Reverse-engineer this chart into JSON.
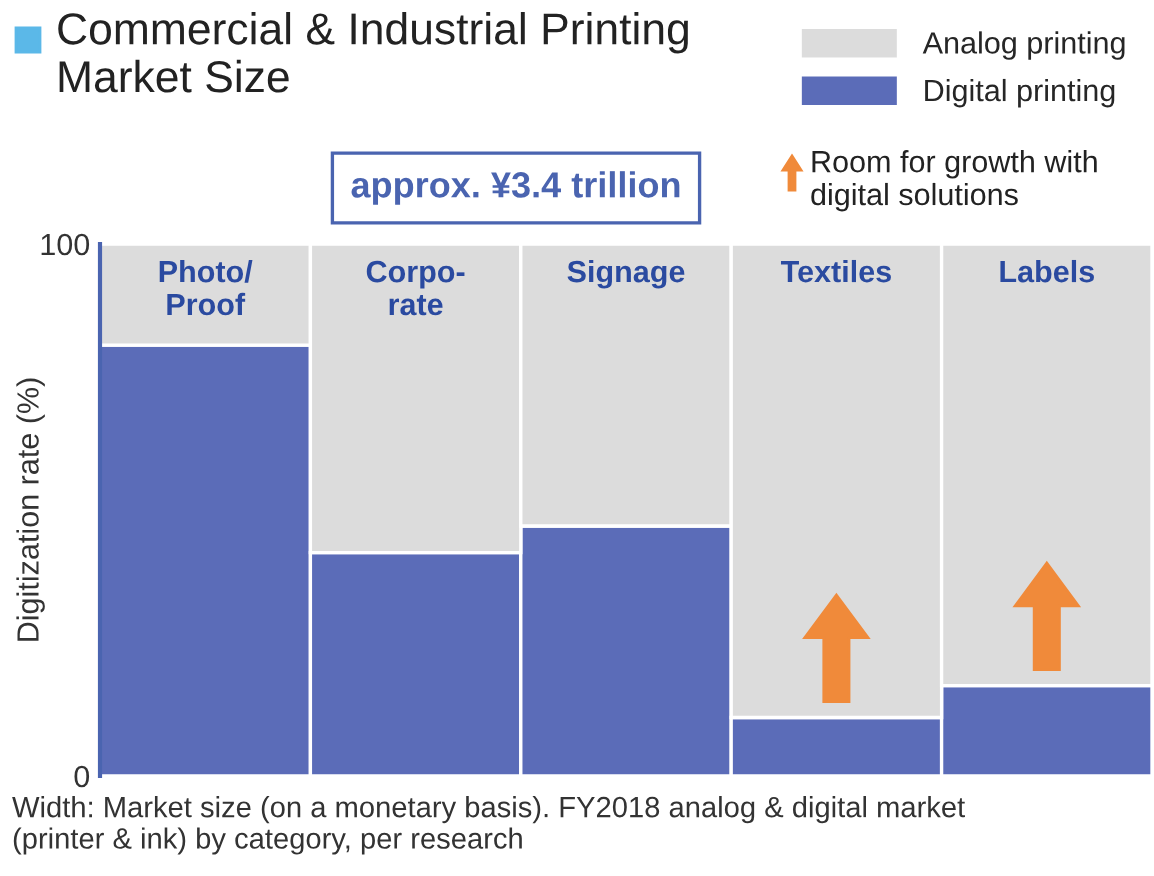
{
  "chart_data": {
    "type": "bar",
    "stacked": true,
    "title": "Commercial & Industrial Printing\nMarket Size",
    "categories": [
      "Photo/\nProof",
      "Corpo-\nrate",
      "Signage",
      "Textiles",
      "Labels"
    ],
    "series": [
      {
        "name": "Digital printing",
        "color": "#5b6cb8",
        "values": [
          81,
          42,
          47,
          11,
          17
        ]
      },
      {
        "name": "Analog printing",
        "color": "#dcdcdc",
        "values": [
          19,
          58,
          53,
          89,
          83
        ]
      }
    ],
    "ylim": [
      0,
      100
    ],
    "yticks": [
      0,
      100
    ],
    "ylabel": "Digitization rate (%)",
    "tick_labels": "y",
    "legend": "top right",
    "annotations": [
      "approx. ¥3.4 trillion",
      "Room for growth with\ndigital solutions",
      "Width: Market size (on a monetary basis). FY2018 analog & digital market\n(printer & ink) by category, per research"
    ]
  }
}
